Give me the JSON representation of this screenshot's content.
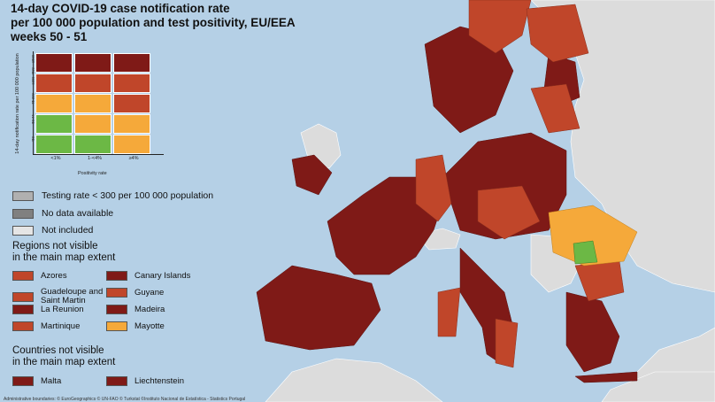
{
  "title_lines": [
    "14-day COVID-19 case notification rate",
    "per 100 000 population and test positivity, EU/EEA",
    "weeks 50 - 51"
  ],
  "colors": {
    "sea": "#b5d0e6",
    "non_eu": "#dcdcdc",
    "dark_red": "#7f1a17",
    "red_orange": "#c0462a",
    "orange": "#f5a93a",
    "green": "#6cb845",
    "grey_low_test": "#b0b0b0",
    "grey_no_data": "#808080",
    "not_included": "#e5e5e5"
  },
  "matrix": {
    "y_title": "14-day notification rate per 100 000 population",
    "x_title": "Positivity rate",
    "row_labels": [
      "≥500",
      "≥200-<500",
      "75-200",
      "50-74",
      "<50"
    ],
    "col_labels": [
      "<1%",
      "1-<4%",
      "≥4%"
    ],
    "cells": [
      [
        "dark_red",
        "dark_red",
        "dark_red"
      ],
      [
        "red_orange",
        "red_orange",
        "red_orange"
      ],
      [
        "orange",
        "orange",
        "red_orange"
      ],
      [
        "green",
        "orange",
        "orange"
      ],
      [
        "green",
        "green",
        "orange"
      ]
    ]
  },
  "legend": {
    "low_testing": "Testing rate < 300 per 100 000 population",
    "no_data": "No data available",
    "not_included": "Not included"
  },
  "regions_heading": [
    "Regions not visible",
    "in the main map extent"
  ],
  "regions": [
    {
      "name": "Azores",
      "color": "red_orange"
    },
    {
      "name": "Canary Islands",
      "color": "dark_red"
    },
    {
      "name": "Guadeloupe and Saint Martin",
      "color": "red_orange"
    },
    {
      "name": "Guyane",
      "color": "red_orange"
    },
    {
      "name": "La Reunion",
      "color": "dark_red"
    },
    {
      "name": "Madeira",
      "color": "dark_red"
    },
    {
      "name": "Martinique",
      "color": "red_orange"
    },
    {
      "name": "Mayotte",
      "color": "orange"
    }
  ],
  "countries_heading": [
    "Countries not visible",
    "in the main map extent"
  ],
  "countries": [
    {
      "name": "Malta",
      "color": "dark_red"
    },
    {
      "name": "Liechtenstein",
      "color": "dark_red"
    }
  ],
  "footer": "Administrative boundaries: © EuroGeographics © UN-FAO © Turkstat ©Instituto Nacional de Estatística - Statistics Portugal"
}
